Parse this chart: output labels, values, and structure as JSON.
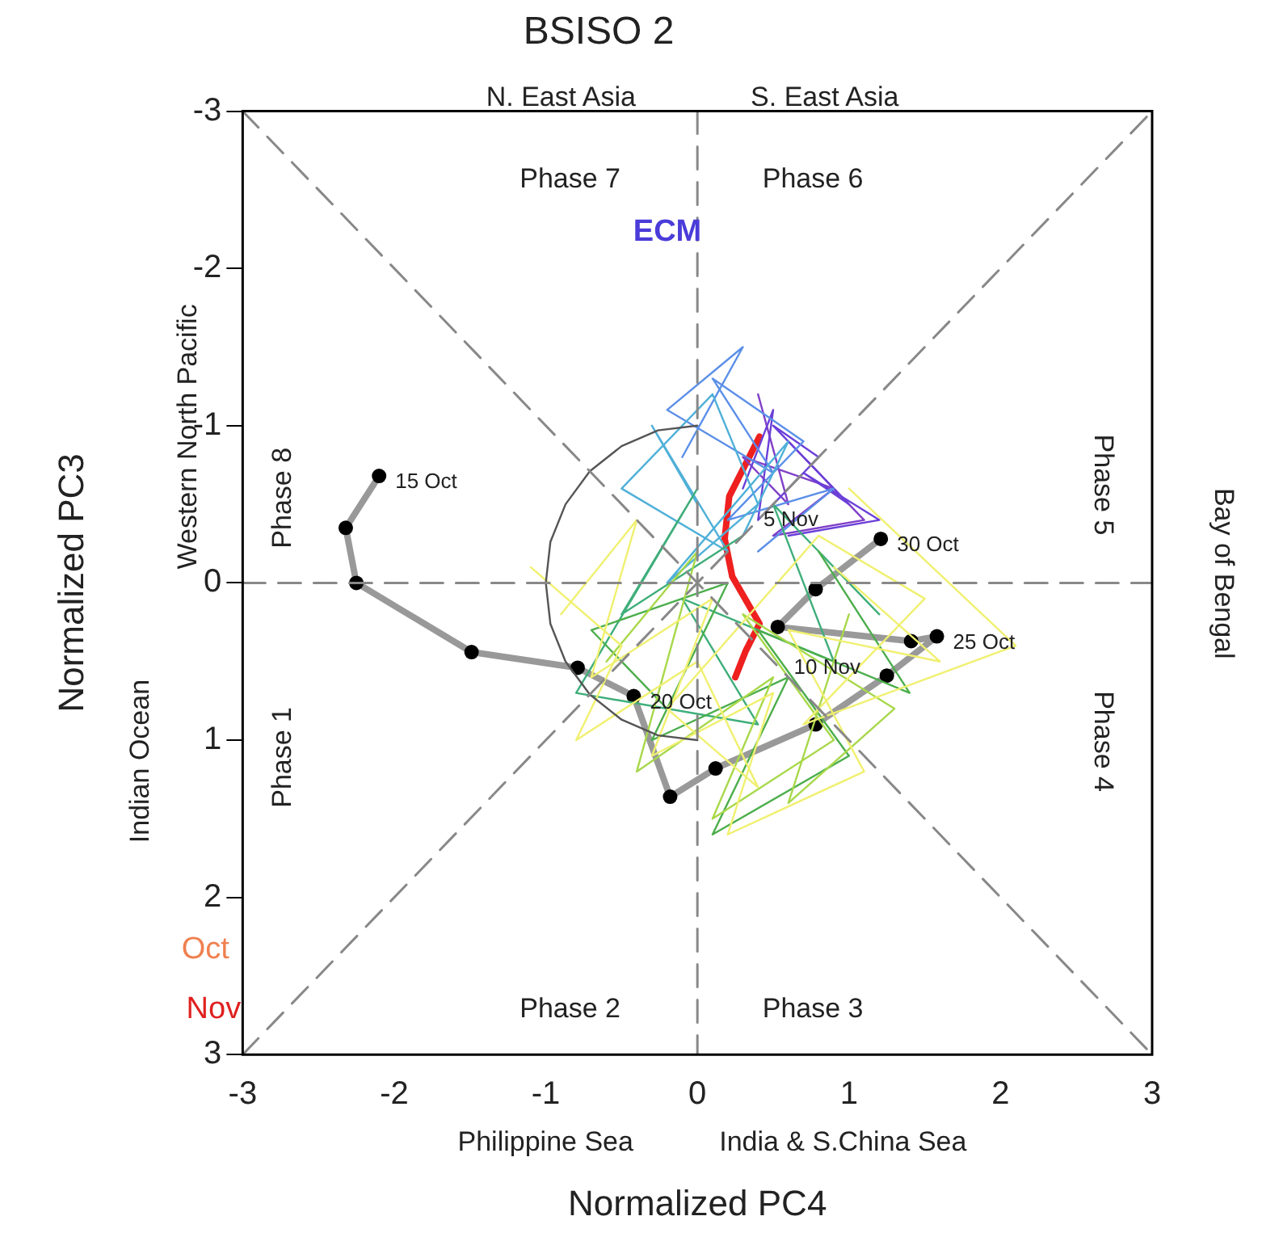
{
  "chart_data": {
    "type": "line",
    "title": "BSISO 2",
    "xlabel": "Normalized PC4",
    "ylabel": "Normalized PC3",
    "xlim": [
      -3,
      3
    ],
    "ylim": [
      3,
      -3
    ],
    "xticks": [
      -3,
      -2,
      -1,
      0,
      1,
      2,
      3
    ],
    "yticks": [
      -3,
      -2,
      -1,
      0,
      1,
      2,
      3
    ],
    "grid": false,
    "legend": false,
    "series": [
      {
        "color": "#888888",
        "line_style": "dashed",
        "x": [
          0,
          0
        ],
        "values": [
          -3,
          3
        ]
      },
      {
        "color": "#888888",
        "line_style": "dashed",
        "x": [
          -3,
          3
        ],
        "values": [
          0,
          0
        ]
      },
      {
        "color": "#888888",
        "line_style": "dashed",
        "x": [
          -3,
          3
        ],
        "values": [
          -3,
          3
        ]
      },
      {
        "color": "#888888",
        "line_style": "dashed",
        "x": [
          -3,
          3
        ],
        "values": [
          3,
          -3
        ]
      },
      {
        "color": "#555555",
        "x": [
          0,
          -0.26,
          -0.5,
          -0.71,
          -0.87,
          -0.97,
          -1,
          -0.97,
          -0.87,
          -0.71,
          -0.5,
          -0.26,
          0
        ],
        "values": [
          -1,
          -0.97,
          -0.87,
          -0.71,
          -0.5,
          -0.26,
          0,
          0.26,
          0.5,
          0.71,
          0.87,
          0.97,
          1
        ]
      },
      {
        "color": "#f0f070",
        "x": [
          -0.9,
          -0.4,
          -0.7,
          0.1,
          -0.3,
          0.5,
          0.2,
          1.1,
          0.6,
          1.6,
          0.9
        ],
        "values": [
          0.2,
          -0.4,
          0.6,
          0.1,
          1.1,
          0.7,
          1.6,
          1.2,
          0.3,
          0.5,
          -0.1
        ]
      },
      {
        "color": "#f0f070",
        "x": [
          -1.1,
          -0.5,
          -0.8,
          0.0,
          0.4,
          -0.2,
          0.8,
          1.5,
          0.7,
          2.1,
          1.0
        ],
        "values": [
          -0.1,
          0.4,
          1.0,
          0.5,
          1.3,
          0.8,
          -0.3,
          0.1,
          0.9,
          0.4,
          -0.6
        ]
      },
      {
        "color": "#a8d84a",
        "x": [
          -0.6,
          0.0,
          -0.4,
          0.5,
          0.1,
          0.9,
          0.3,
          1.3,
          0.6,
          1.0
        ],
        "values": [
          0.5,
          -0.2,
          1.2,
          0.6,
          1.5,
          1.0,
          0.2,
          0.8,
          1.4,
          0.2
        ]
      },
      {
        "color": "#4cae4c",
        "x": [
          -0.2,
          -0.7,
          0.2,
          -0.3,
          0.6,
          0.1,
          1.0,
          0.4,
          1.4,
          0.8
        ],
        "values": [
          0.8,
          0.3,
          0.0,
          1.0,
          0.6,
          1.6,
          1.1,
          0.3,
          0.7,
          -0.2
        ]
      },
      {
        "color": "#3fae7a",
        "x": [
          0.3,
          -0.5,
          0.0,
          -0.8,
          0.4,
          -0.1,
          0.9,
          0.5,
          1.2
        ],
        "values": [
          -0.3,
          0.2,
          -0.6,
          0.7,
          0.9,
          0.1,
          0.5,
          -0.5,
          0.2
        ]
      },
      {
        "color": "#4fb0d8",
        "x": [
          0.0,
          -0.3,
          0.2,
          -0.5,
          0.1,
          0.4,
          -0.2,
          0.6,
          0.3
        ],
        "values": [
          -0.5,
          -1.0,
          -0.2,
          -0.6,
          -1.2,
          -0.5,
          0.0,
          -0.9,
          -0.3
        ]
      },
      {
        "color": "#5b8fe8",
        "x": [
          -0.1,
          0.3,
          -0.2,
          0.5,
          0.1,
          0.7,
          0.2,
          0.9,
          0.4
        ],
        "values": [
          -0.8,
          -1.5,
          -1.1,
          -0.7,
          -1.3,
          -0.9,
          -0.4,
          -0.6,
          -0.2
        ]
      },
      {
        "color": "#6b3fd8",
        "x": [
          0.3,
          0.5,
          0.4,
          0.8,
          0.5,
          1.0,
          0.7,
          1.2,
          0.6
        ],
        "values": [
          -0.6,
          -1.1,
          -0.4,
          -0.8,
          -1.0,
          -0.5,
          -0.7,
          -0.4,
          -0.3
        ]
      },
      {
        "color": "#8040c8",
        "x": [
          0.4,
          0.6,
          0.3,
          0.9,
          0.5,
          1.1,
          0.6
        ],
        "values": [
          -1.2,
          -0.5,
          -0.8,
          -0.6,
          -0.3,
          -0.4,
          -0.9
        ]
      },
      {
        "color": "#ee2020",
        "marker": "none",
        "x": [
          0.41,
          0.21,
          0.18,
          0.23,
          0.41,
          0.32,
          0.25
        ],
        "values": [
          -0.93,
          -0.55,
          -0.28,
          -0.04,
          0.26,
          0.43,
          0.6
        ]
      },
      {
        "color": "#999999",
        "marker": "circle",
        "x": [
          -2.1,
          -2.32,
          -2.25,
          -1.49,
          -0.79,
          -0.42,
          -0.18,
          0.12,
          0.78,
          1.25,
          1.58,
          1.41,
          0.53,
          0.78,
          1.21
        ],
        "values": [
          -0.68,
          -0.35,
          0,
          0.44,
          0.54,
          0.72,
          1.36,
          1.18,
          0.9,
          0.59,
          0.34,
          0.37,
          0.28,
          0.04,
          -0.28
        ]
      }
    ],
    "annotations": [
      "Phase 7",
      "Phase 6",
      "Phase 8",
      "Phase 1",
      "Phase 5",
      "Phase 4",
      "Phase 2",
      "Phase 3",
      "ECM",
      {
        "text": "15 Oct",
        "x": -2.1,
        "y": -0.68
      },
      {
        "text": "20 Oct",
        "x": -0.42,
        "y": 0.72
      },
      {
        "text": "25 Oct",
        "x": 1.58,
        "y": 0.34
      },
      {
        "text": "30 Oct",
        "x": 1.21,
        "y": -0.28
      },
      {
        "text": "5 Nov",
        "x": 0.33,
        "y": -0.44
      },
      {
        "text": "10 Nov",
        "x": 0.53,
        "y": 0.5
      },
      "N. East Asia",
      "S. East Asia",
      "Western North Pacific",
      "Indian Ocean",
      "Bay of Bengal",
      "Philippine Sea",
      "India & S.China Sea",
      "Oct",
      "Nov"
    ]
  }
}
